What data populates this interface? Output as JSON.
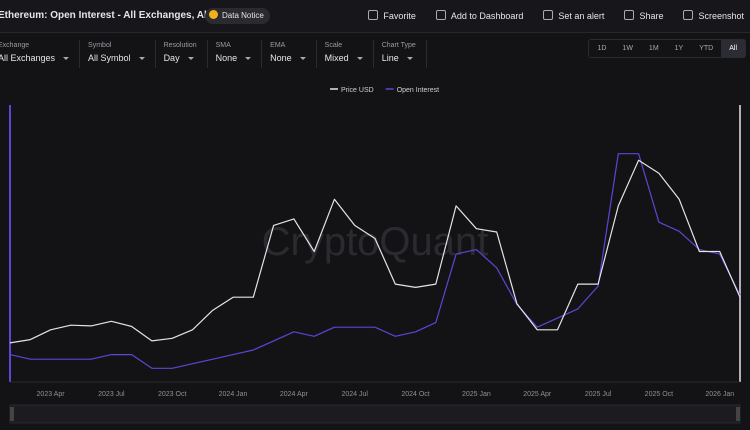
{
  "header": {
    "title": "Ethereum: Open Interest - All Exchanges, All Symbol",
    "notice": "Data Notice",
    "actions": [
      "Favorite",
      "Add to Dashboard",
      "Set an alert",
      "Share",
      "Screenshot"
    ]
  },
  "controls": [
    {
      "label": "Exchange",
      "value": "All Exchanges"
    },
    {
      "label": "Symbol",
      "value": "All Symbol"
    },
    {
      "label": "Resolution",
      "value": "Day"
    },
    {
      "label": "SMA",
      "value": "None"
    },
    {
      "label": "EMA",
      "value": "None"
    },
    {
      "label": "Scale",
      "value": "Mixed"
    },
    {
      "label": "Chart Type",
      "value": "Line"
    }
  ],
  "ranges": [
    "1D",
    "1W",
    "1M",
    "1Y",
    "YTD",
    "All"
  ],
  "active_range": 5,
  "watermark": "CryptoQuant",
  "chart_data": {
    "type": "line",
    "categories": [
      null,
      null,
      "2023 Apr",
      null,
      null,
      "2023 Jul",
      null,
      null,
      "2023 Oct",
      null,
      null,
      "2024 Jan",
      null,
      null,
      "2024 Apr",
      null,
      null,
      "2024 Jul",
      null,
      null,
      "2024 Oct",
      null,
      null,
      "2025 Jan",
      null,
      null,
      "2025 Apr",
      null,
      null,
      "2025 Jul",
      null,
      null,
      "2025 Oct",
      null,
      null,
      "2026 Jan",
      null
    ],
    "series": [
      {
        "name": "Price USD",
        "color": "#e4e4e8",
        "axis": "y2",
        "values": [
          1600,
          1650,
          1800,
          1870,
          1860,
          1930,
          1850,
          1630,
          1670,
          1800,
          2100,
          2300,
          2300,
          3400,
          3500,
          3000,
          3800,
          3400,
          3200,
          2500,
          2450,
          2500,
          3700,
          3350,
          3300,
          2200,
          1800,
          1800,
          2500,
          2500,
          3700,
          4400,
          4200,
          3800,
          3000,
          3000,
          2300
        ]
      },
      {
        "name": "Open Interest",
        "color": "#5a47d6",
        "values": [
          11,
          10,
          10,
          10,
          10,
          11,
          11,
          8,
          8,
          9,
          10,
          11,
          12,
          14,
          16,
          15,
          17,
          17,
          17,
          15,
          16,
          18,
          33,
          34,
          30,
          22,
          17,
          19,
          21,
          26,
          55,
          55,
          40,
          38,
          34,
          33,
          24
        ]
      }
    ],
    "ylim": [
      5,
      65
    ],
    "y2lim": [
      1000,
      5200
    ]
  }
}
